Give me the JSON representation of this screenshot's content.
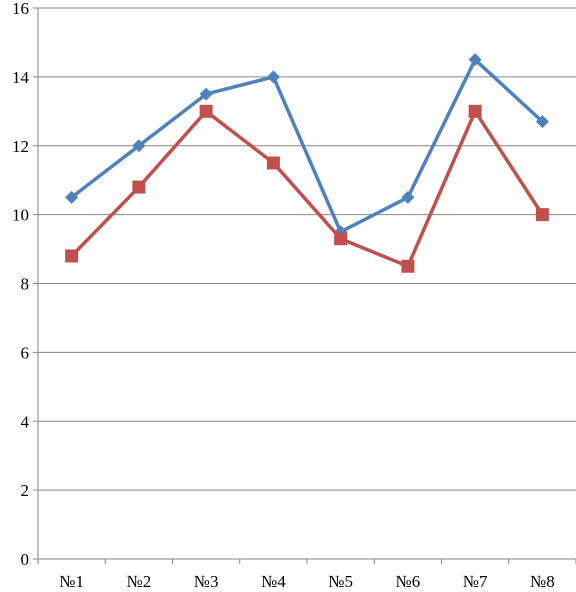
{
  "chart_data": {
    "type": "line",
    "title": "",
    "xlabel": "",
    "ylabel": "",
    "categories": [
      "№1",
      "№2",
      "№3",
      "№4",
      "№5",
      "№6",
      "№7",
      "№8"
    ],
    "ylim": [
      0,
      16
    ],
    "yticks": [
      0,
      2,
      4,
      6,
      8,
      10,
      12,
      14,
      16
    ],
    "grid": true,
    "legend": "none",
    "series": [
      {
        "color": "#4F81BD",
        "marker": "diamond",
        "values": [
          10.5,
          12,
          13.5,
          14,
          9.5,
          10.5,
          14.5,
          12.7
        ]
      },
      {
        "color": "#C0504D",
        "marker": "square",
        "values": [
          8.8,
          10.8,
          13,
          11.5,
          9.3,
          8.5,
          13,
          10
        ]
      }
    ]
  }
}
